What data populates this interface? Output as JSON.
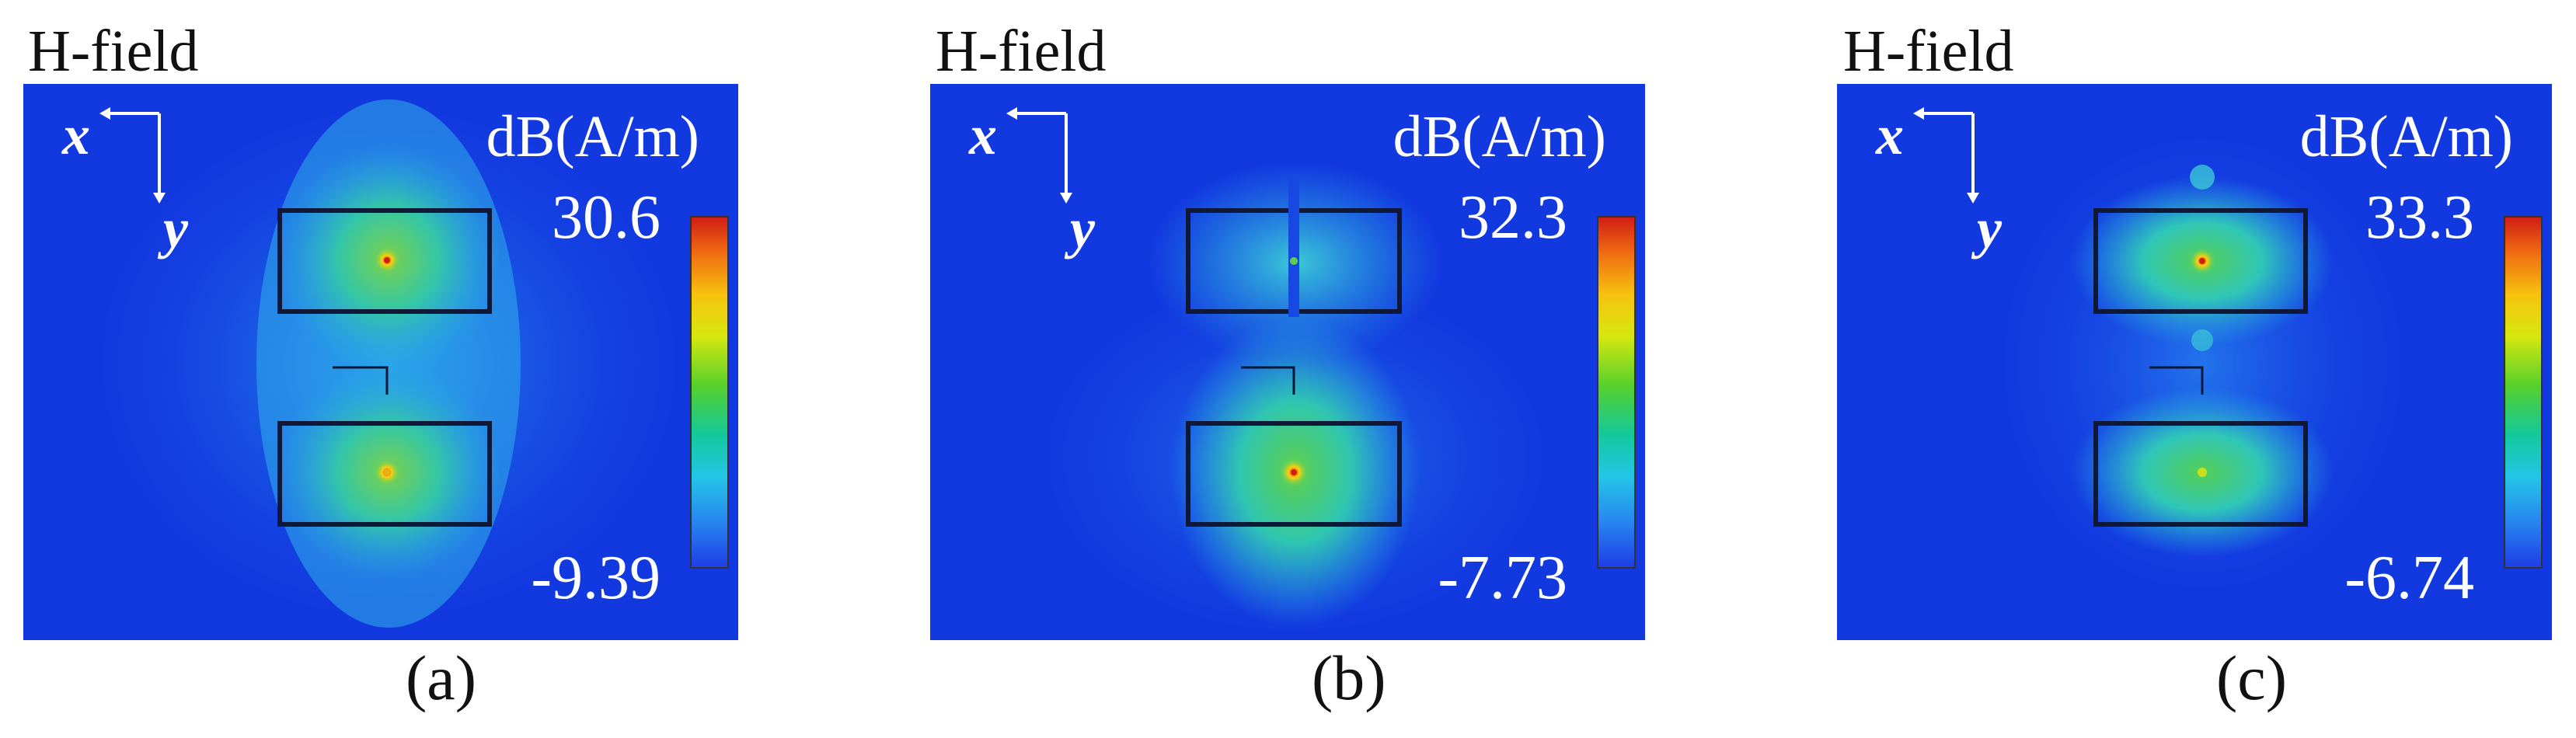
{
  "panels": [
    {
      "title": "H-field",
      "unit": "dB(A/m)",
      "max": "30.6",
      "min": "-9.39",
      "caption": "(a)",
      "axis_x": "x",
      "axis_y": "y"
    },
    {
      "title": "H-field",
      "unit": "dB(A/m)",
      "max": "32.3",
      "min": "-7.73",
      "caption": "(b)",
      "axis_x": "x",
      "axis_y": "y"
    },
    {
      "title": "H-field",
      "unit": "dB(A/m)",
      "max": "33.3",
      "min": "-6.74",
      "caption": "(c)",
      "axis_x": "x",
      "axis_y": "y"
    }
  ],
  "colors": {
    "background": "#1238e0",
    "colormap": [
      "#d21e14",
      "#f06a12",
      "#f7c20f",
      "#d6e70f",
      "#56d12b",
      "#12c89a",
      "#23c6e6",
      "#2886f1",
      "#1e3ee6"
    ]
  }
}
